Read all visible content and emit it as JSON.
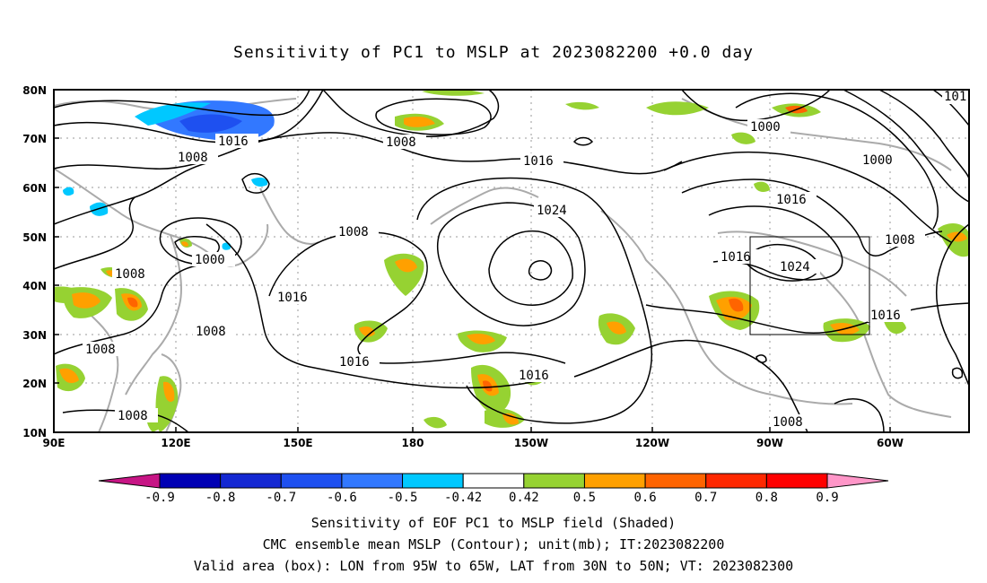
{
  "title": "Sensitivity of PC1 to MSLP at 2023082200 +0.0 day",
  "lat_labels": [
    "80N",
    "70N",
    "60N",
    "50N",
    "40N",
    "30N",
    "20N",
    "10N"
  ],
  "lon_labels": [
    "90E",
    "120E",
    "150E",
    "180",
    "150W",
    "120W",
    "90W",
    "60W"
  ],
  "contour_labels": [
    "1016",
    "1008",
    "1008",
    "1016",
    "1000",
    "1000",
    "1016",
    "1024",
    "1024",
    "1008",
    "1008",
    "1016",
    "1008",
    "1016",
    "1016",
    "1016",
    "1008",
    "1008",
    "1008",
    "1016",
    "1000",
    "101"
  ],
  "colorbar": {
    "ticks": [
      "-0.9",
      "-0.8",
      "-0.7",
      "-0.6",
      "-0.5",
      "-0.42",
      "0.42",
      "0.5",
      "0.6",
      "0.7",
      "0.8",
      "0.9"
    ],
    "colors": [
      "#c71585",
      "#0000b4",
      "#1428d2",
      "#1e50f0",
      "#3278ff",
      "#00c8ff",
      "#ffffff",
      "#96d232",
      "#ffa000",
      "#ff6400",
      "#ff2800",
      "#ff0000",
      "#ff96c8"
    ]
  },
  "valid_box": {
    "lon_min": "95W",
    "lon_max": "65W",
    "lat_min": "30N",
    "lat_max": "50N"
  },
  "footer": {
    "line1": "Sensitivity of EOF PC1 to MSLP field (Shaded)",
    "line2": "CMC ensemble mean MSLP (Contour); unit(mb); IT:2023082200",
    "line3": "Valid area (box): LON from 95W to 65W, LAT from 30N to 50N; VT: 2023082300"
  }
}
